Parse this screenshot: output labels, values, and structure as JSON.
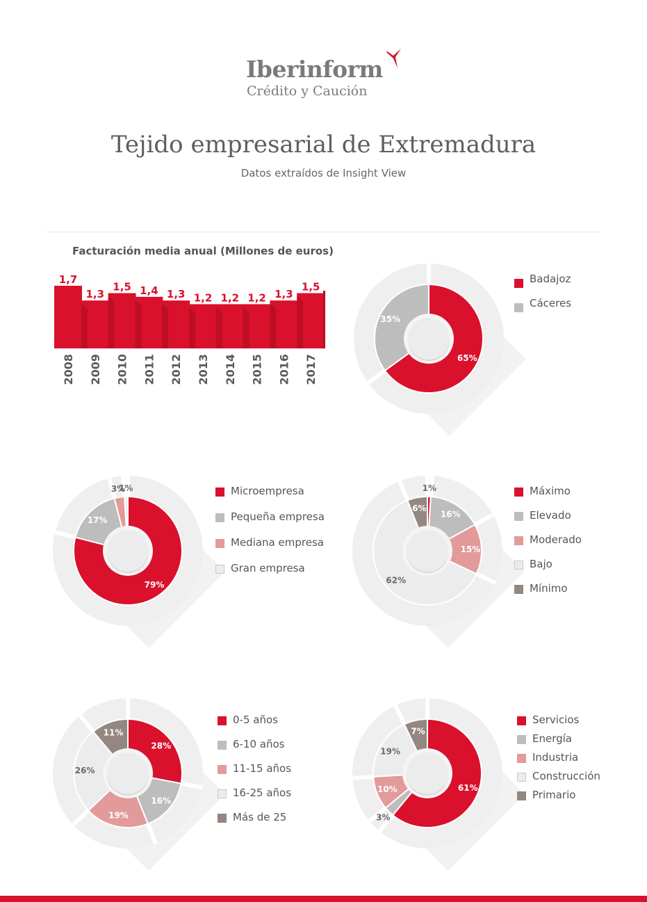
{
  "logo": {
    "name": "Iberinform",
    "subtitle": "Crédito y Caución",
    "mark_color": "#d9112c"
  },
  "header": {
    "title": "Tejido empresarial de Extremadura",
    "subtitle": "Datos extraídos de Insight View"
  },
  "colors": {
    "accent": "#d9112c",
    "gray": "#bdbdbd",
    "pink": "#e29a9a",
    "light": "#ececec",
    "brown": "#948680",
    "track": "#efefef"
  },
  "chart_data": [
    {
      "type": "bar",
      "title": "Facturación media anual (Millones de euros)",
      "categories": [
        "2008",
        "2009",
        "2010",
        "2011",
        "2012",
        "2013",
        "2014",
        "2015",
        "2016",
        "2017"
      ],
      "values": [
        1.7,
        1.3,
        1.5,
        1.4,
        1.3,
        1.2,
        1.2,
        1.2,
        1.3,
        1.5
      ],
      "value_labels": [
        "1,7",
        "1,3",
        "1,5",
        "1,4",
        "1,3",
        "1,2",
        "1,2",
        "1,2",
        "1,3",
        "1,5"
      ],
      "bar_color": "#d9112c",
      "xlabel": "",
      "ylabel": ""
    },
    {
      "type": "pie",
      "variant": "donut",
      "categories": [
        "Badajoz",
        "Cáceres"
      ],
      "values": [
        65,
        35
      ],
      "labels": [
        "65%",
        "35%"
      ],
      "colors": [
        "#d9112c",
        "#bdbdbd"
      ]
    },
    {
      "type": "pie",
      "variant": "donut",
      "categories": [
        "Microempresa",
        "Pequeña empresa",
        "Mediana empresa",
        "Gran empresa"
      ],
      "values": [
        79,
        17,
        3,
        1
      ],
      "labels": [
        "79%",
        "17%",
        "3%",
        "1%"
      ],
      "colors": [
        "#d9112c",
        "#bdbdbd",
        "#e29a9a",
        "#ececec"
      ]
    },
    {
      "type": "pie",
      "variant": "donut",
      "categories": [
        "Máximo",
        "Elevado",
        "Moderado",
        "Bajo",
        "Mínimo"
      ],
      "values": [
        1,
        16,
        15,
        62,
        6
      ],
      "labels": [
        "1%",
        "16%",
        "15%",
        "62%",
        "6%"
      ],
      "colors": [
        "#d9112c",
        "#bdbdbd",
        "#e29a9a",
        "#ececec",
        "#948680"
      ]
    },
    {
      "type": "pie",
      "variant": "donut",
      "categories": [
        "0-5 años",
        "6-10 años",
        "11-15 años",
        "16-25 años",
        "Más de 25"
      ],
      "values": [
        28,
        16,
        19,
        26,
        11
      ],
      "labels": [
        "28%",
        "16%",
        "19%",
        "26%",
        "11%"
      ],
      "colors": [
        "#d9112c",
        "#bdbdbd",
        "#e29a9a",
        "#ececec",
        "#948680"
      ]
    },
    {
      "type": "pie",
      "variant": "donut",
      "categories": [
        "Servicios",
        "Energía",
        "Industria",
        "Construcción",
        "Primario"
      ],
      "values": [
        61,
        3,
        10,
        19,
        7
      ],
      "labels": [
        "61%",
        "3%",
        "10%",
        "19%",
        "7%"
      ],
      "colors": [
        "#d9112c",
        "#bdbdbd",
        "#e29a9a",
        "#ececec",
        "#948680"
      ]
    }
  ]
}
